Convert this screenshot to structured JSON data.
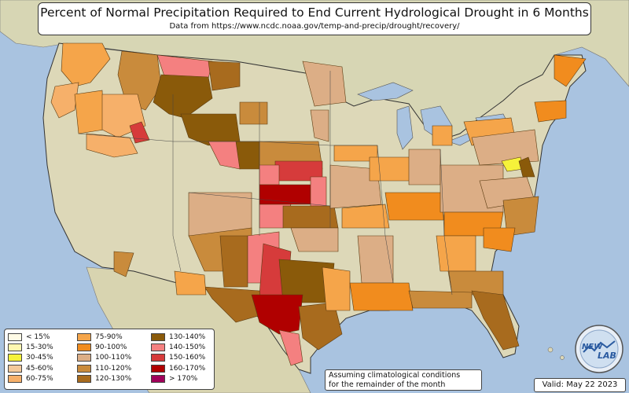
{
  "header": {
    "title": "Percent of Normal Precipitation Required to End Current Hydrological Drought in 6 Months",
    "source": "Data from https://www.ncdc.noaa.gov/temp-and-precip/drought/recovery/"
  },
  "legend": [
    {
      "label": "< 15%",
      "color": "#fffbe6"
    },
    {
      "label": "15-30%",
      "color": "#fff7b0"
    },
    {
      "label": "30-45%",
      "color": "#f6f23a"
    },
    {
      "label": "45-60%",
      "color": "#f4c99a"
    },
    {
      "label": "60-75%",
      "color": "#f6b06a"
    },
    {
      "label": "75-90%",
      "color": "#f5a54a"
    },
    {
      "label": "90-100%",
      "color": "#f18c1e"
    },
    {
      "label": "100-110%",
      "color": "#dcae86"
    },
    {
      "label": "110-120%",
      "color": "#c98b3c"
    },
    {
      "label": "120-130%",
      "color": "#a86b1e"
    },
    {
      "label": "130-140%",
      "color": "#8a5a0a"
    },
    {
      "label": "140-150%",
      "color": "#f48080"
    },
    {
      "label": "150-160%",
      "color": "#d63b3b"
    },
    {
      "label": "160-170%",
      "color": "#b00000"
    },
    {
      "label": "> 170%",
      "color": "#a0005a"
    }
  ],
  "footer": {
    "assumption_line1": "Assuming climatological conditions",
    "assumption_line2": "for the remainder of the month",
    "valid": "Valid: May 22 2023"
  },
  "logo": {
    "line1": "NEW",
    "line2": "LAB"
  },
  "colors": {
    "ocean": "#a9c3e0",
    "land": "#ddd8b8",
    "border": "#333333"
  }
}
